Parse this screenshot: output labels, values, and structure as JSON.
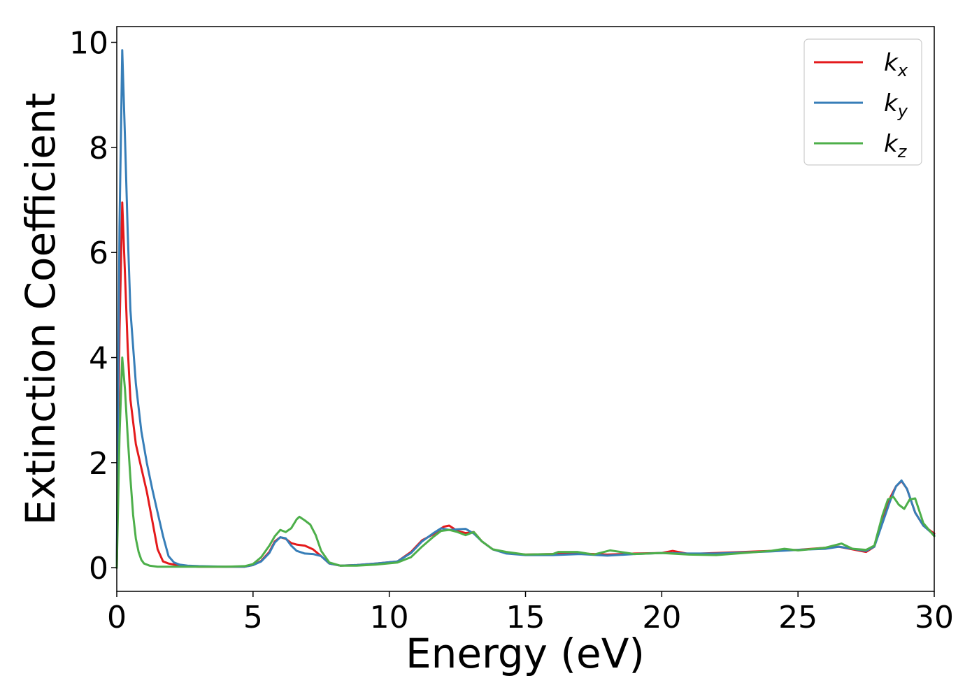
{
  "chart_data": {
    "type": "line",
    "xlabel": "Energy (eV)",
    "ylabel": "Extinction Coefficient",
    "xlim": [
      0,
      30
    ],
    "ylim": [
      -0.45,
      10.3
    ],
    "xticks": [
      0,
      5,
      10,
      15,
      20,
      25,
      30
    ],
    "yticks": [
      0,
      2,
      4,
      6,
      8,
      10
    ],
    "grid": false,
    "legend_position": "top-right",
    "series": [
      {
        "name": "k",
        "subscript": "x",
        "color": "#e41a1c",
        "x": [
          0,
          0.1,
          0.2,
          0.3,
          0.4,
          0.5,
          0.7,
          0.9,
          1.1,
          1.3,
          1.5,
          1.7,
          1.9,
          2.2,
          2.6,
          3,
          4,
          4.7,
          5,
          5.3,
          5.6,
          5.8,
          6,
          6.2,
          6.4,
          6.6,
          6.9,
          7.2,
          7.5,
          7.8,
          8.2,
          8.8,
          9.5,
          10.3,
          10.8,
          11.2,
          11.6,
          12,
          12.2,
          12.5,
          12.8,
          13.1,
          13.4,
          13.8,
          14.3,
          15,
          16,
          17,
          18,
          19,
          20,
          20.4,
          21,
          22,
          23,
          24,
          25,
          26,
          26.5,
          27,
          27.5,
          27.8,
          28.1,
          28.4,
          28.6,
          28.8,
          29,
          29.3,
          29.6,
          30
        ],
        "y": [
          0,
          4.5,
          6.95,
          5.6,
          4.2,
          3.2,
          2.35,
          1.9,
          1.45,
          0.9,
          0.35,
          0.12,
          0.08,
          0.05,
          0.03,
          0.02,
          0.02,
          0.02,
          0.05,
          0.13,
          0.3,
          0.5,
          0.58,
          0.55,
          0.47,
          0.44,
          0.42,
          0.35,
          0.22,
          0.08,
          0.04,
          0.05,
          0.08,
          0.12,
          0.3,
          0.52,
          0.63,
          0.78,
          0.8,
          0.7,
          0.66,
          0.68,
          0.5,
          0.35,
          0.28,
          0.25,
          0.26,
          0.27,
          0.25,
          0.27,
          0.28,
          0.32,
          0.26,
          0.28,
          0.3,
          0.32,
          0.34,
          0.38,
          0.4,
          0.35,
          0.3,
          0.4,
          0.9,
          1.35,
          1.55,
          1.65,
          1.5,
          1.05,
          0.8,
          0.65
        ]
      },
      {
        "name": "k",
        "subscript": "y",
        "color": "#377eb8",
        "x": [
          0,
          0.1,
          0.2,
          0.3,
          0.4,
          0.5,
          0.7,
          0.9,
          1.1,
          1.3,
          1.5,
          1.7,
          1.9,
          2.1,
          2.3,
          2.6,
          3,
          4,
          4.7,
          5,
          5.3,
          5.6,
          5.8,
          6,
          6.2,
          6.4,
          6.6,
          6.9,
          7.2,
          7.5,
          7.8,
          8.2,
          8.8,
          9.5,
          10.3,
          10.8,
          11.2,
          11.6,
          11.9,
          12.2,
          12.5,
          12.8,
          13.1,
          13.4,
          13.8,
          14.3,
          15,
          16,
          17,
          18,
          19,
          20,
          21,
          22,
          23,
          24,
          25,
          26,
          26.5,
          27,
          27.5,
          27.8,
          28.1,
          28.4,
          28.6,
          28.8,
          29,
          29.3,
          29.6,
          30
        ],
        "y": [
          0,
          6.5,
          9.85,
          8.2,
          6.4,
          4.9,
          3.5,
          2.6,
          2.0,
          1.5,
          1.05,
          0.6,
          0.22,
          0.1,
          0.06,
          0.04,
          0.03,
          0.02,
          0.02,
          0.05,
          0.12,
          0.28,
          0.48,
          0.58,
          0.56,
          0.42,
          0.32,
          0.27,
          0.26,
          0.22,
          0.08,
          0.04,
          0.05,
          0.08,
          0.12,
          0.28,
          0.5,
          0.65,
          0.75,
          0.72,
          0.73,
          0.74,
          0.65,
          0.5,
          0.35,
          0.27,
          0.24,
          0.24,
          0.26,
          0.23,
          0.26,
          0.28,
          0.27,
          0.27,
          0.29,
          0.31,
          0.34,
          0.36,
          0.4,
          0.36,
          0.32,
          0.4,
          0.85,
          1.3,
          1.55,
          1.66,
          1.5,
          1.05,
          0.8,
          0.62
        ]
      },
      {
        "name": "k",
        "subscript": "z",
        "color": "#4daf4a",
        "x": [
          0,
          0.1,
          0.2,
          0.3,
          0.4,
          0.5,
          0.6,
          0.7,
          0.8,
          0.9,
          1.0,
          1.2,
          1.5,
          2,
          3,
          4,
          4.7,
          5,
          5.3,
          5.6,
          5.8,
          6,
          6.2,
          6.4,
          6.6,
          6.7,
          6.9,
          7.1,
          7.3,
          7.5,
          7.8,
          8.2,
          8.8,
          9.5,
          10.3,
          10.8,
          11.2,
          11.6,
          11.9,
          12.2,
          12.5,
          12.8,
          13.1,
          13.4,
          13.8,
          14.3,
          15,
          16,
          16.2,
          16.9,
          17.5,
          18.1,
          19,
          20,
          21,
          22,
          23,
          24,
          24.5,
          25,
          26,
          26.6,
          27,
          27.5,
          27.8,
          28.1,
          28.3,
          28.5,
          28.7,
          28.9,
          29.1,
          29.3,
          29.6,
          30
        ],
        "y": [
          0,
          2.5,
          4.0,
          3.4,
          2.5,
          1.7,
          1.0,
          0.55,
          0.3,
          0.15,
          0.08,
          0.04,
          0.02,
          0.02,
          0.02,
          0.02,
          0.03,
          0.07,
          0.2,
          0.42,
          0.6,
          0.72,
          0.68,
          0.75,
          0.92,
          0.97,
          0.9,
          0.82,
          0.62,
          0.32,
          0.1,
          0.04,
          0.04,
          0.06,
          0.1,
          0.2,
          0.4,
          0.58,
          0.7,
          0.72,
          0.68,
          0.62,
          0.68,
          0.5,
          0.35,
          0.3,
          0.25,
          0.26,
          0.3,
          0.3,
          0.25,
          0.33,
          0.26,
          0.28,
          0.25,
          0.24,
          0.28,
          0.32,
          0.36,
          0.33,
          0.38,
          0.46,
          0.36,
          0.34,
          0.42,
          1.0,
          1.3,
          1.35,
          1.2,
          1.12,
          1.3,
          1.32,
          0.85,
          0.6
        ]
      }
    ]
  }
}
